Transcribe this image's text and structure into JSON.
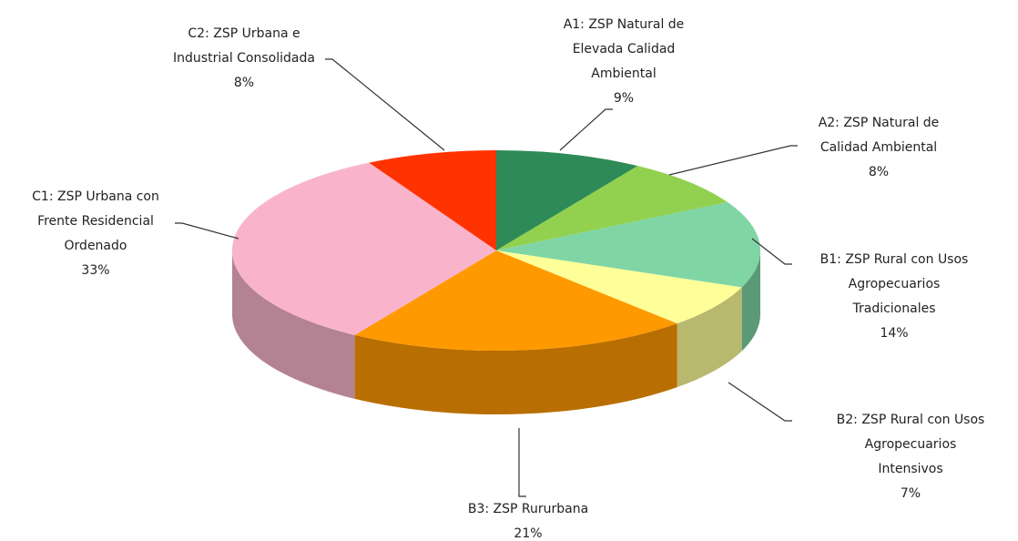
{
  "chart_data": {
    "type": "pie",
    "categories": [
      "A1: ZSP Natural de\nElevada Calidad\nAmbiental",
      "A2: ZSP Natural de\nCalidad Ambiental",
      "B1: ZSP Rural con Usos\nAgropecuarios\nTradicionales",
      "B2: ZSP Rural con Usos\nAgropecuarios\nIntensivos",
      "B3: ZSP Rururbana",
      "C1: ZSP Urbana con\nFrente Residencial\nOrdenado",
      "C2: ZSP Urbana e\nIndustrial Consolidada"
    ],
    "values": [
      9,
      8,
      14,
      7,
      21,
      33,
      8
    ],
    "value_labels": [
      "9%",
      "8%",
      "14%",
      "7%",
      "21%",
      "33%",
      "8%"
    ],
    "colors": [
      "#2e8b57",
      "#92d050",
      "#7fd6a4",
      "#ffff99",
      "#ff9900",
      "#f9b4cc",
      "#ff3300"
    ]
  }
}
